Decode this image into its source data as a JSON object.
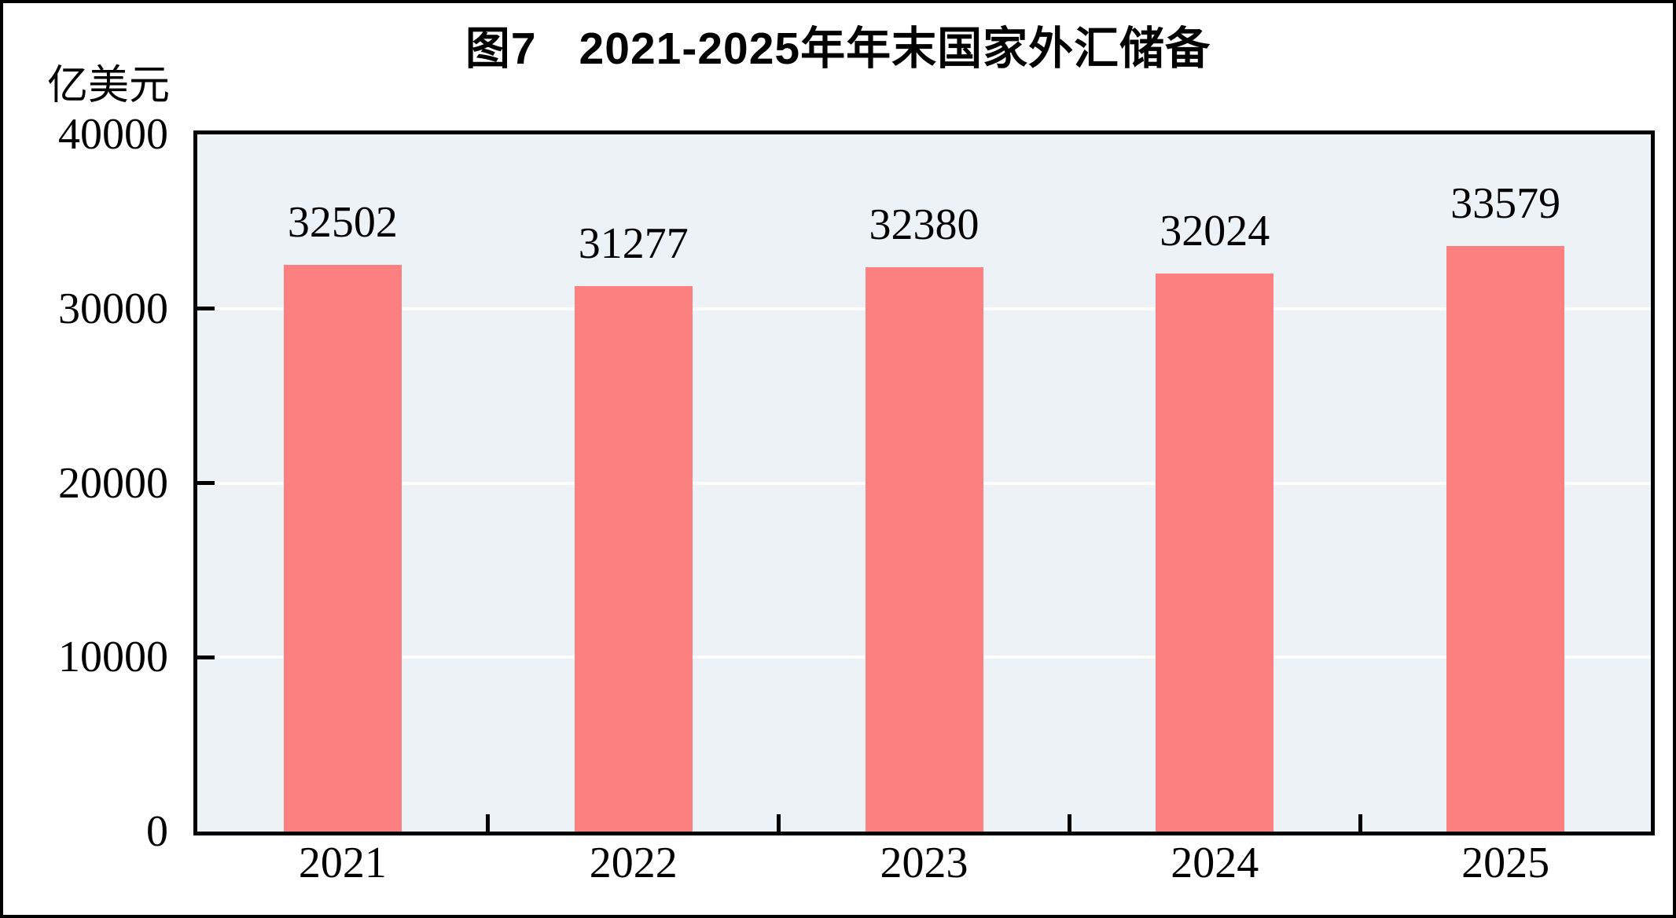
{
  "figure": {
    "label": "图7",
    "title": "2021-2025年年末国家外汇储备"
  },
  "y_axis": {
    "unit": "亿美元",
    "tick_labels": [
      "0",
      "10000",
      "20000",
      "30000",
      "40000"
    ]
  },
  "chart_data": {
    "type": "bar",
    "title": "图7 2021-2025年年末国家外汇储备",
    "categories": [
      "2021",
      "2022",
      "2023",
      "2024",
      "2025"
    ],
    "values": [
      32502,
      31277,
      32380,
      32024,
      33579
    ],
    "data_labels": [
      "32502",
      "31277",
      "32380",
      "32024",
      "33579"
    ],
    "xlabel": "",
    "ylabel": "亿美元",
    "ylim": [
      0,
      40000
    ],
    "yticks": [
      0,
      10000,
      20000,
      30000,
      40000
    ],
    "grid": true,
    "legend": "none",
    "colors": {
      "bar": "#fc8080",
      "plot_background": "#ecf2f6",
      "gridline": "#ffffff",
      "axis": "#000000",
      "text": "#000000"
    }
  }
}
